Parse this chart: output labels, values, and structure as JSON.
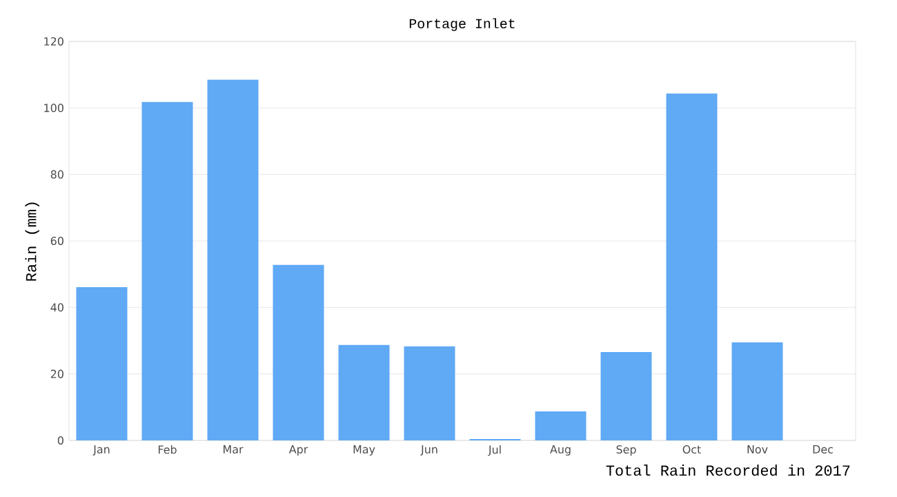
{
  "chart_data": {
    "type": "bar",
    "title": "Portage Inlet",
    "xlabel": "Total Rain Recorded in 2017",
    "ylabel": "Rain (mm)",
    "categories": [
      "Jan",
      "Feb",
      "Mar",
      "Apr",
      "May",
      "Jun",
      "Jul",
      "Aug",
      "Sep",
      "Oct",
      "Nov",
      "Dec"
    ],
    "values": [
      46.1,
      101.8,
      108.5,
      52.8,
      28.7,
      28.3,
      0.4,
      8.7,
      26.6,
      104.3,
      29.5,
      0
    ],
    "color": "#60a9f5",
    "ylim": [
      0,
      120
    ],
    "yticks": [
      0,
      20,
      40,
      60,
      80,
      100,
      120
    ],
    "grid": "y"
  }
}
